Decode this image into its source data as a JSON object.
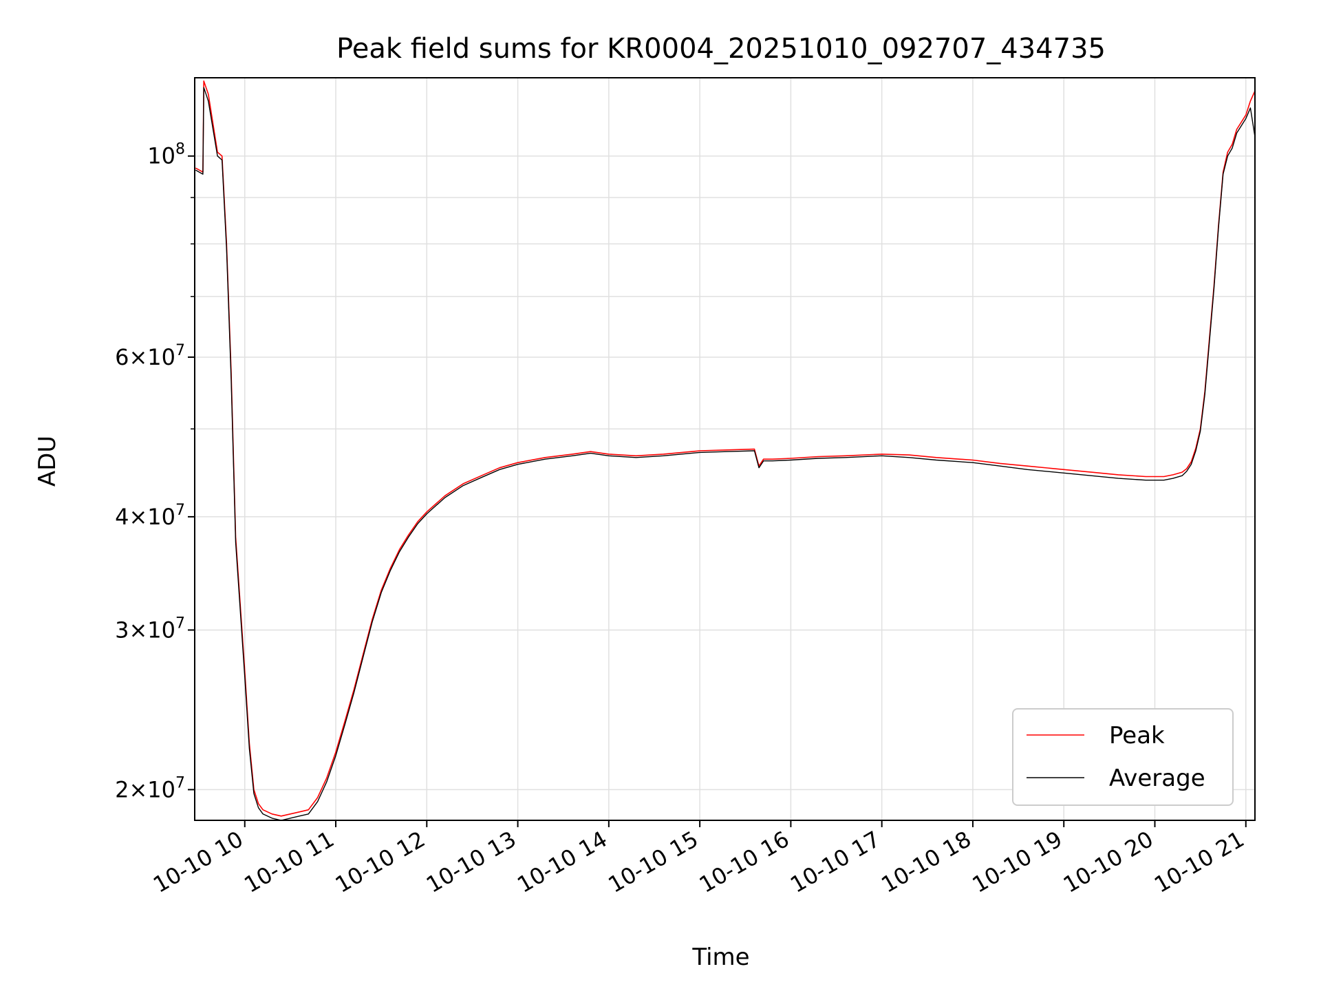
{
  "colors": {
    "peak": "#ff0000",
    "average": "#000000",
    "grid": "#e0e0e0",
    "axis": "#000000"
  },
  "chart_data": {
    "type": "line",
    "title": "Peak field sums for KR0004_20251010_092707_434735",
    "xlabel": "Time",
    "ylabel": "ADU",
    "yscale": "log",
    "grid": true,
    "legend_position": "lower-right",
    "x_unit": "hour of day on 2025-10-10",
    "xlim": [
      9.45,
      21.1
    ],
    "ylim": [
      18500000,
      122000000
    ],
    "x_ticks": [
      {
        "value": 10,
        "label": "10-10 10"
      },
      {
        "value": 11,
        "label": "10-10 11"
      },
      {
        "value": 12,
        "label": "10-10 12"
      },
      {
        "value": 13,
        "label": "10-10 13"
      },
      {
        "value": 14,
        "label": "10-10 14"
      },
      {
        "value": 15,
        "label": "10-10 15"
      },
      {
        "value": 16,
        "label": "10-10 16"
      },
      {
        "value": 17,
        "label": "10-10 17"
      },
      {
        "value": 18,
        "label": "10-10 18"
      },
      {
        "value": 19,
        "label": "10-10 19"
      },
      {
        "value": 20,
        "label": "10-10 20"
      },
      {
        "value": 21,
        "label": "10-10 21"
      }
    ],
    "y_ticks_major": [
      {
        "value": 20000000,
        "mantissa": "2",
        "base": "10",
        "exp": "7"
      },
      {
        "value": 30000000,
        "mantissa": "3",
        "base": "10",
        "exp": "7"
      },
      {
        "value": 40000000,
        "mantissa": "4",
        "base": "10",
        "exp": "7"
      },
      {
        "value": 60000000,
        "mantissa": "6",
        "base": "10",
        "exp": "7"
      },
      {
        "value": 100000000,
        "mantissa": "",
        "base": "10",
        "exp": "8"
      }
    ],
    "y_ticks_minor": [
      50000000,
      70000000,
      80000000,
      90000000
    ],
    "series": [
      {
        "name": "Peak",
        "color": "#ff0000",
        "x": [
          9.46,
          9.5,
          9.54,
          9.55,
          9.6,
          9.7,
          9.75,
          9.8,
          9.85,
          9.9,
          10.0,
          10.05,
          10.1,
          10.15,
          10.2,
          10.3,
          10.4,
          10.5,
          10.6,
          10.7,
          10.8,
          10.9,
          11.0,
          11.1,
          11.2,
          11.3,
          11.4,
          11.5,
          11.6,
          11.7,
          11.8,
          11.9,
          12.0,
          12.2,
          12.4,
          12.6,
          12.8,
          13.0,
          13.3,
          13.6,
          13.8,
          14.0,
          14.3,
          14.6,
          15.0,
          15.3,
          15.6,
          15.65,
          15.7,
          15.8,
          16.0,
          16.3,
          16.6,
          17.0,
          17.3,
          17.6,
          18.0,
          18.3,
          18.6,
          19.0,
          19.3,
          19.6,
          19.9,
          20.1,
          20.2,
          20.3,
          20.35,
          20.4,
          20.45,
          20.5,
          20.55,
          20.6,
          20.65,
          20.7,
          20.75,
          20.8,
          20.85,
          20.9,
          21.0,
          21.05,
          21.1
        ],
        "y": [
          97000000,
          96500000,
          96000000,
          121000000,
          117000000,
          101000000,
          100000000,
          80000000,
          58000000,
          38000000,
          27000000,
          22500000,
          20000000,
          19300000,
          19000000,
          18800000,
          18700000,
          18800000,
          18900000,
          19000000,
          19600000,
          20600000,
          22000000,
          23800000,
          25800000,
          28200000,
          30800000,
          33200000,
          35100000,
          36800000,
          38200000,
          39500000,
          40500000,
          42200000,
          43500000,
          44400000,
          45300000,
          45900000,
          46500000,
          46900000,
          47200000,
          46900000,
          46700000,
          46900000,
          47300000,
          47400000,
          47500000,
          45500000,
          46300000,
          46300000,
          46400000,
          46600000,
          46700000,
          46900000,
          46800000,
          46500000,
          46200000,
          45800000,
          45500000,
          45100000,
          44800000,
          44500000,
          44300000,
          44300000,
          44500000,
          44800000,
          45200000,
          46000000,
          47600000,
          50000000,
          55000000,
          63000000,
          72000000,
          84000000,
          96000000,
          101000000,
          103000000,
          107000000,
          111000000,
          115000000,
          118000000
        ]
      },
      {
        "name": "Average",
        "color": "#000000",
        "x": [
          9.46,
          9.5,
          9.54,
          9.55,
          9.6,
          9.7,
          9.75,
          9.8,
          9.85,
          9.9,
          10.0,
          10.05,
          10.1,
          10.15,
          10.2,
          10.3,
          10.4,
          10.5,
          10.6,
          10.7,
          10.8,
          10.9,
          11.0,
          11.1,
          11.2,
          11.3,
          11.4,
          11.5,
          11.6,
          11.7,
          11.8,
          11.9,
          12.0,
          12.2,
          12.4,
          12.6,
          12.8,
          13.0,
          13.3,
          13.6,
          13.8,
          14.0,
          14.3,
          14.6,
          15.0,
          15.3,
          15.6,
          15.65,
          15.7,
          15.8,
          16.0,
          16.3,
          16.6,
          17.0,
          17.3,
          17.6,
          18.0,
          18.3,
          18.6,
          19.0,
          19.3,
          19.6,
          19.9,
          20.1,
          20.2,
          20.3,
          20.35,
          20.4,
          20.45,
          20.5,
          20.55,
          20.6,
          20.65,
          20.7,
          20.75,
          20.8,
          20.85,
          20.9,
          21.0,
          21.05,
          21.1
        ],
        "y": [
          96500000,
          96000000,
          95500000,
          119000000,
          115000000,
          100000000,
          99000000,
          79000000,
          57000000,
          37500000,
          26600000,
          22200000,
          19800000,
          19100000,
          18800000,
          18600000,
          18500000,
          18600000,
          18700000,
          18800000,
          19400000,
          20400000,
          21800000,
          23600000,
          25600000,
          28000000,
          30600000,
          33000000,
          34900000,
          36600000,
          38000000,
          39300000,
          40300000,
          42000000,
          43300000,
          44200000,
          45100000,
          45700000,
          46300000,
          46700000,
          47000000,
          46700000,
          46500000,
          46700000,
          47100000,
          47200000,
          47300000,
          45300000,
          46100000,
          46100000,
          46200000,
          46400000,
          46500000,
          46700000,
          46500000,
          46200000,
          45900000,
          45500000,
          45100000,
          44700000,
          44400000,
          44100000,
          43900000,
          43900000,
          44100000,
          44400000,
          44900000,
          45700000,
          47300000,
          49700000,
          54600000,
          62500000,
          71500000,
          83500000,
          95500000,
          100000000,
          102000000,
          106000000,
          110000000,
          113000000,
          105000000
        ]
      }
    ]
  }
}
